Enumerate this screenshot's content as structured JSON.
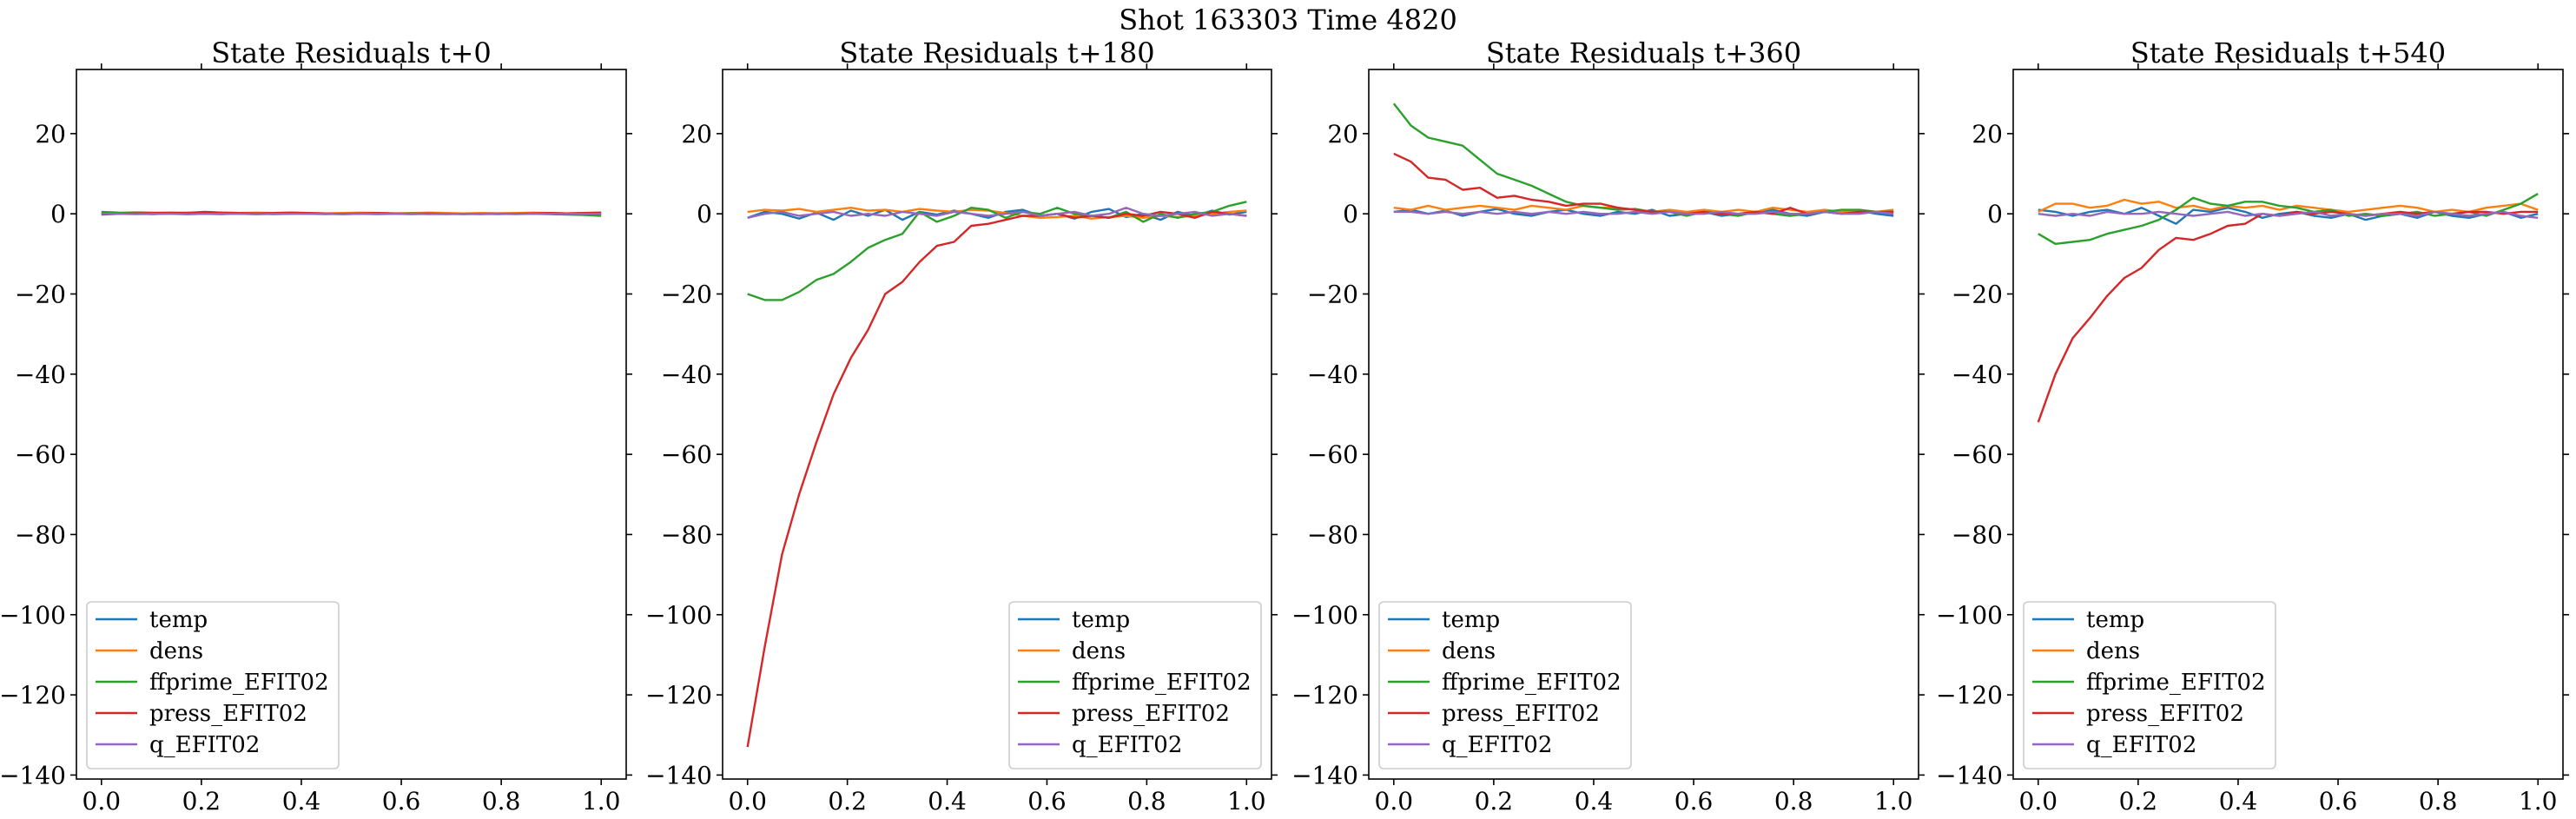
{
  "suptitle": "Shot 163303   Time 4820",
  "colors": {
    "temp": "#1f77b4",
    "dens": "#ff7f0e",
    "ffprime_EFIT02": "#2ca02c",
    "press_EFIT02": "#d62728",
    "q_EFIT02": "#9467bd",
    "zero_line": "#000000"
  },
  "chart_data": [
    {
      "type": "line",
      "title": "State Residuals t+0",
      "xlim": [
        -0.05,
        1.05
      ],
      "ylim": [
        -141,
        36
      ],
      "xticks": [
        0.0,
        0.2,
        0.4,
        0.6,
        0.8,
        1.0
      ],
      "xtick_labels": [
        "0.0",
        "0.2",
        "0.4",
        "0.6",
        "0.8",
        "1.0"
      ],
      "yticks": [
        -140,
        -120,
        -100,
        -80,
        -60,
        -40,
        -20,
        0,
        20
      ],
      "ytick_labels": [
        "−140",
        "−120",
        "−100",
        "−80",
        "−60",
        "−40",
        "−20",
        "0",
        "20"
      ],
      "legend_position": "lower left",
      "x": [
        0.0,
        0.0345,
        0.069,
        0.1034,
        0.1379,
        0.1724,
        0.2069,
        0.2414,
        0.2759,
        0.3103,
        0.3448,
        0.3793,
        0.4138,
        0.4483,
        0.4828,
        0.5172,
        0.5517,
        0.5862,
        0.6207,
        0.6552,
        0.6897,
        0.7241,
        0.7586,
        0.7931,
        0.8276,
        0.8621,
        0.8966,
        0.931,
        0.9655,
        1.0
      ],
      "series": [
        {
          "name": "temp",
          "values": [
            0.2,
            0.1,
            0.0,
            -0.1,
            0.1,
            0.2,
            0.0,
            -0.1,
            0.1,
            0.0,
            -0.1,
            0.0,
            0.1,
            0.0,
            -0.1,
            0.0,
            0.1,
            0.0,
            -0.1,
            0.0,
            0.1,
            0.0,
            -0.1,
            0.0,
            0.1,
            0.0,
            0.0,
            0.1,
            0.0,
            0.0
          ]
        },
        {
          "name": "dens",
          "values": [
            0.3,
            0.2,
            0.4,
            0.3,
            0.2,
            0.3,
            0.4,
            0.3,
            0.2,
            0.3,
            0.2,
            0.3,
            0.2,
            0.1,
            0.2,
            0.3,
            0.2,
            0.1,
            0.2,
            0.3,
            0.2,
            0.1,
            0.2,
            0.1,
            0.2,
            0.3,
            0.2,
            0.1,
            0.2,
            0.3
          ]
        },
        {
          "name": "ffprime_EFIT02",
          "values": [
            0.5,
            0.3,
            0.2,
            0.1,
            0.0,
            -0.1,
            0.0,
            0.1,
            0.0,
            -0.1,
            0.0,
            0.1,
            0.0,
            -0.1,
            0.0,
            0.0,
            -0.1,
            0.0,
            0.1,
            0.0,
            -0.1,
            0.0,
            0.0,
            -0.1,
            0.0,
            0.0,
            -0.1,
            -0.2,
            -0.3,
            -0.5
          ]
        },
        {
          "name": "press_EFIT02",
          "values": [
            -0.2,
            0.0,
            0.1,
            0.2,
            0.3,
            0.2,
            0.5,
            0.3,
            0.2,
            0.1,
            0.2,
            0.3,
            0.2,
            0.1,
            0.0,
            0.1,
            0.2,
            0.1,
            0.0,
            0.1,
            0.0,
            -0.1,
            0.0,
            0.1,
            0.0,
            0.1,
            0.2,
            0.1,
            0.2,
            0.3
          ]
        },
        {
          "name": "q_EFIT02",
          "values": [
            0.0,
            0.0,
            -0.1,
            0.0,
            0.0,
            -0.1,
            0.0,
            0.0,
            0.0,
            -0.1,
            0.0,
            0.0,
            0.0,
            0.0,
            -0.1,
            0.0,
            0.0,
            0.0,
            0.0,
            -0.1,
            0.0,
            0.0,
            0.0,
            0.0,
            -0.1,
            0.0,
            0.0,
            0.0,
            0.0,
            0.0
          ]
        }
      ]
    },
    {
      "type": "line",
      "title": "State Residuals t+180",
      "xlim": [
        -0.05,
        1.05
      ],
      "ylim": [
        -141,
        36
      ],
      "xticks": [
        0.0,
        0.2,
        0.4,
        0.6,
        0.8,
        1.0
      ],
      "xtick_labels": [
        "0.0",
        "0.2",
        "0.4",
        "0.6",
        "0.8",
        "1.0"
      ],
      "yticks": [
        -140,
        -120,
        -100,
        -80,
        -60,
        -40,
        -20,
        0,
        20
      ],
      "ytick_labels": [
        "−140",
        "−120",
        "−100",
        "−80",
        "−60",
        "−40",
        "−20",
        "0",
        "20"
      ],
      "legend_position": "lower right",
      "x": [
        0.0,
        0.0345,
        0.069,
        0.1034,
        0.1379,
        0.1724,
        0.2069,
        0.2414,
        0.2759,
        0.3103,
        0.3448,
        0.3793,
        0.4138,
        0.4483,
        0.4828,
        0.5172,
        0.5517,
        0.5862,
        0.6207,
        0.6552,
        0.6897,
        0.7241,
        0.7586,
        0.7931,
        0.8276,
        0.8621,
        0.8966,
        0.931,
        0.9655,
        1.0
      ],
      "series": [
        {
          "name": "temp",
          "values": [
            -1.0,
            0.5,
            0.0,
            -1.2,
            0.3,
            -1.5,
            0.8,
            -0.5,
            1.0,
            -1.5,
            0.5,
            -0.2,
            0.8,
            0.0,
            -1.0,
            0.5,
            1.0,
            -0.5,
            0.0,
            -1.2,
            0.5,
            1.2,
            -0.8,
            0.0,
            -1.5,
            0.5,
            -0.5,
            0.8,
            -0.2,
            0.5
          ]
        },
        {
          "name": "dens",
          "values": [
            0.5,
            1.0,
            0.8,
            1.2,
            0.5,
            1.0,
            1.5,
            0.8,
            1.0,
            0.5,
            1.2,
            0.8,
            0.5,
            1.0,
            0.8,
            0.2,
            -0.5,
            -1.0,
            -0.8,
            -0.5,
            -1.2,
            -0.8,
            -0.5,
            -1.0,
            -0.5,
            -0.8,
            -0.5,
            0.0,
            0.5,
            0.8
          ]
        },
        {
          "name": "ffprime_EFIT02",
          "values": [
            -20.0,
            -21.5,
            -21.5,
            -19.5,
            -16.5,
            -15.0,
            -12.0,
            -8.5,
            -6.5,
            -5.0,
            0.5,
            -2.0,
            -0.5,
            1.5,
            1.0,
            -1.0,
            0.5,
            0.0,
            1.5,
            0.0,
            -0.5,
            -1.0,
            0.5,
            -2.0,
            0.0,
            -1.0,
            0.0,
            0.5,
            2.0,
            3.0
          ]
        },
        {
          "name": "press_EFIT02",
          "values": [
            -133.0,
            -108.0,
            -85.0,
            -70.0,
            -57.0,
            -45.0,
            -36.0,
            -29.0,
            -20.0,
            -17.0,
            -12.0,
            -8.0,
            -7.0,
            -3.0,
            -2.5,
            -1.5,
            -0.5,
            -0.5,
            0.0,
            -1.0,
            -0.5,
            -1.0,
            0.0,
            -0.5,
            0.5,
            0.0,
            -1.0,
            0.5,
            0.0,
            -0.5
          ]
        },
        {
          "name": "q_EFIT02",
          "values": [
            -1.0,
            0.0,
            0.5,
            -0.5,
            0.0,
            0.5,
            -0.5,
            0.0,
            -0.5,
            0.5,
            0.0,
            -0.5,
            0.5,
            0.0,
            -0.5,
            0.0,
            0.5,
            -0.5,
            0.0,
            0.5,
            -0.5,
            0.0,
            1.5,
            0.0,
            -0.5,
            0.0,
            0.5,
            -0.5,
            0.0,
            -0.5
          ]
        }
      ]
    },
    {
      "type": "line",
      "title": "State Residuals t+360",
      "xlim": [
        -0.05,
        1.05
      ],
      "ylim": [
        -141,
        36
      ],
      "xticks": [
        0.0,
        0.2,
        0.4,
        0.6,
        0.8,
        1.0
      ],
      "xtick_labels": [
        "0.0",
        "0.2",
        "0.4",
        "0.6",
        "0.8",
        "1.0"
      ],
      "yticks": [
        -140,
        -120,
        -100,
        -80,
        -60,
        -40,
        -20,
        0,
        20
      ],
      "ytick_labels": [
        "−140",
        "−120",
        "−100",
        "−80",
        "−60",
        "−40",
        "−20",
        "0",
        "20"
      ],
      "legend_position": "lower left",
      "x": [
        0.0,
        0.0345,
        0.069,
        0.1034,
        0.1379,
        0.1724,
        0.2069,
        0.2414,
        0.2759,
        0.3103,
        0.3448,
        0.3793,
        0.4138,
        0.4483,
        0.4828,
        0.5172,
        0.5517,
        0.5862,
        0.6207,
        0.6552,
        0.6897,
        0.7241,
        0.7586,
        0.7931,
        0.8276,
        0.8621,
        0.8966,
        0.931,
        0.9655,
        1.0
      ],
      "series": [
        {
          "name": "temp",
          "values": [
            0.5,
            1.0,
            0.0,
            0.8,
            -0.5,
            0.5,
            1.2,
            0.0,
            -0.5,
            0.5,
            1.0,
            0.0,
            -0.5,
            0.5,
            0.0,
            1.0,
            -0.5,
            0.0,
            0.5,
            -0.5,
            0.0,
            0.5,
            1.0,
            0.0,
            -0.5,
            0.5,
            0.0,
            0.8,
            0.0,
            -0.5
          ]
        },
        {
          "name": "dens",
          "values": [
            1.5,
            1.0,
            2.0,
            1.0,
            1.5,
            2.0,
            1.5,
            1.0,
            2.0,
            1.5,
            1.0,
            2.0,
            1.5,
            1.5,
            1.0,
            0.5,
            1.0,
            0.5,
            1.0,
            0.5,
            1.0,
            0.5,
            1.5,
            1.0,
            0.5,
            1.0,
            0.5,
            1.0,
            0.5,
            1.0
          ]
        },
        {
          "name": "ffprime_EFIT02",
          "values": [
            27.5,
            22.0,
            19.0,
            18.0,
            17.0,
            13.5,
            10.0,
            8.5,
            7.0,
            5.0,
            3.0,
            2.0,
            1.5,
            1.0,
            1.2,
            0.5,
            0.5,
            -0.5,
            0.5,
            0.0,
            -0.5,
            0.5,
            0.0,
            -0.5,
            0.0,
            0.5,
            1.0,
            1.0,
            0.5,
            0.5
          ]
        },
        {
          "name": "press_EFIT02",
          "values": [
            15.0,
            13.0,
            9.0,
            8.5,
            6.0,
            6.5,
            4.0,
            4.5,
            3.5,
            3.0,
            2.0,
            2.5,
            2.5,
            1.5,
            1.0,
            0.5,
            0.5,
            0.0,
            0.5,
            0.0,
            0.0,
            0.5,
            0.0,
            1.5,
            0.0,
            0.5,
            0.0,
            0.5,
            0.5,
            0.5
          ]
        },
        {
          "name": "q_EFIT02",
          "values": [
            0.5,
            0.5,
            0.0,
            0.5,
            0.0,
            0.5,
            0.0,
            0.5,
            0.0,
            0.5,
            0.0,
            0.5,
            0.0,
            0.0,
            0.5,
            0.0,
            0.5,
            0.0,
            0.0,
            0.5,
            0.0,
            0.0,
            0.5,
            0.0,
            0.0,
            0.5,
            0.0,
            0.0,
            0.5,
            0.0
          ]
        }
      ]
    },
    {
      "type": "line",
      "title": "State Residuals t+540",
      "xlim": [
        -0.05,
        1.05
      ],
      "ylim": [
        -141,
        36
      ],
      "xticks": [
        0.0,
        0.2,
        0.4,
        0.6,
        0.8,
        1.0
      ],
      "xtick_labels": [
        "0.0",
        "0.2",
        "0.4",
        "0.6",
        "0.8",
        "1.0"
      ],
      "yticks": [
        -140,
        -120,
        -100,
        -80,
        -60,
        -40,
        -20,
        0,
        20
      ],
      "ytick_labels": [
        "−140",
        "−120",
        "−100",
        "−80",
        "−60",
        "−40",
        "−20",
        "0",
        "20"
      ],
      "legend_position": "lower left",
      "x": [
        0.0,
        0.0345,
        0.069,
        0.1034,
        0.1379,
        0.1724,
        0.2069,
        0.2414,
        0.2759,
        0.3103,
        0.3448,
        0.3793,
        0.4138,
        0.4483,
        0.4828,
        0.5172,
        0.5517,
        0.5862,
        0.6207,
        0.6552,
        0.6897,
        0.7241,
        0.7586,
        0.7931,
        0.8276,
        0.8621,
        0.8966,
        0.931,
        0.9655,
        1.0
      ],
      "series": [
        {
          "name": "temp",
          "values": [
            1.0,
            0.5,
            -0.5,
            0.5,
            1.0,
            0.0,
            1.5,
            -0.5,
            -2.5,
            1.0,
            0.5,
            1.5,
            0.5,
            -1.0,
            0.0,
            0.5,
            -0.5,
            -1.0,
            0.0,
            -1.5,
            -0.5,
            0.0,
            -1.0,
            0.5,
            -0.5,
            -1.0,
            0.0,
            0.5,
            -1.0,
            0.0
          ]
        },
        {
          "name": "dens",
          "values": [
            0.5,
            2.5,
            2.5,
            1.5,
            2.0,
            3.5,
            2.5,
            3.0,
            1.5,
            2.0,
            1.0,
            2.0,
            1.5,
            2.0,
            1.0,
            2.0,
            1.5,
            1.0,
            0.5,
            1.0,
            1.5,
            2.0,
            1.5,
            0.5,
            1.0,
            0.5,
            1.5,
            2.0,
            2.5,
            1.0
          ]
        },
        {
          "name": "ffprime_EFIT02",
          "values": [
            -5.0,
            -7.5,
            -7.0,
            -6.5,
            -5.0,
            -4.0,
            -3.0,
            -1.5,
            1.0,
            4.0,
            2.5,
            2.0,
            3.0,
            3.0,
            2.0,
            1.5,
            0.5,
            1.0,
            -0.5,
            0.0,
            -0.5,
            0.0,
            0.5,
            -0.5,
            0.0,
            0.5,
            -0.5,
            1.0,
            2.5,
            5.0
          ]
        },
        {
          "name": "press_EFIT02",
          "values": [
            -52.0,
            -40.0,
            -31.0,
            -26.0,
            -20.5,
            -16.0,
            -13.5,
            -9.0,
            -6.0,
            -6.5,
            -5.0,
            -3.0,
            -2.5,
            0.0,
            -0.5,
            0.5,
            0.0,
            0.5,
            0.0,
            -0.5,
            0.0,
            0.5,
            0.0,
            0.5,
            0.0,
            0.5,
            0.5,
            0.0,
            0.5,
            0.5
          ]
        },
        {
          "name": "q_EFIT02",
          "values": [
            0.0,
            -0.5,
            0.0,
            -0.5,
            0.5,
            0.0,
            0.0,
            0.5,
            0.0,
            -0.5,
            0.0,
            0.5,
            -0.5,
            0.0,
            -0.5,
            0.0,
            0.5,
            -0.5,
            0.0,
            -0.5,
            0.0,
            0.0,
            -0.5,
            0.5,
            0.0,
            -0.5,
            0.0,
            0.5,
            -0.5,
            -1.0
          ]
        }
      ]
    }
  ]
}
